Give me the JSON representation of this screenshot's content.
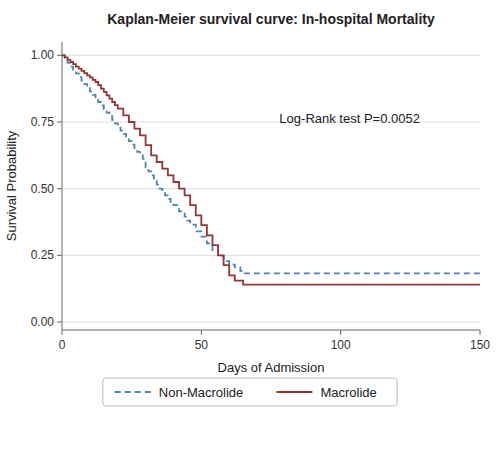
{
  "chart_data": {
    "type": "step",
    "title": "Kaplan-Meier survival curve: In-hospital Mortality",
    "xlabel": "Days of Admission",
    "ylabel": "Survival Probability",
    "annotation": "Log-Rank test P=0.0052",
    "xlim": [
      0,
      150
    ],
    "ylim": [
      -0.03,
      1.05
    ],
    "xticks": [
      0,
      50,
      100,
      150
    ],
    "yticks": [
      {
        "value": 0.0,
        "label": "0.00"
      },
      {
        "value": 0.25,
        "label": "0.25"
      },
      {
        "value": 0.5,
        "label": "0.50"
      },
      {
        "value": 0.75,
        "label": "0.75"
      },
      {
        "value": 1.0,
        "label": "1.00"
      }
    ],
    "grid": "y",
    "legend": "bottom",
    "series": [
      {
        "name": "Non-Macrolide",
        "color": "#4f81bd",
        "line_style": "dashed",
        "x": [
          0,
          1,
          2,
          3,
          4,
          5,
          6,
          7,
          8,
          9,
          10,
          11,
          12,
          13,
          14,
          15,
          16,
          17,
          18,
          19,
          20,
          21,
          22,
          23,
          24,
          25,
          26,
          27,
          28,
          29,
          30,
          31,
          32,
          33,
          34,
          35,
          36,
          37,
          38,
          39,
          40,
          42,
          44,
          45,
          46,
          48,
          50,
          52,
          54,
          56,
          58,
          60,
          62,
          64,
          65,
          150
        ],
        "values": [
          1.0,
          0.985,
          0.972,
          0.958,
          0.945,
          0.932,
          0.918,
          0.905,
          0.892,
          0.878,
          0.865,
          0.852,
          0.838,
          0.825,
          0.812,
          0.798,
          0.785,
          0.772,
          0.758,
          0.745,
          0.732,
          0.718,
          0.705,
          0.692,
          0.678,
          0.665,
          0.652,
          0.638,
          0.625,
          0.612,
          0.58,
          0.565,
          0.55,
          0.53,
          0.515,
          0.5,
          0.488,
          0.475,
          0.462,
          0.45,
          0.438,
          0.415,
          0.395,
          0.38,
          0.365,
          0.34,
          0.32,
          0.295,
          0.27,
          0.248,
          0.228,
          0.215,
          0.205,
          0.192,
          0.182,
          0.182
        ]
      },
      {
        "name": "Macrolide",
        "color": "#943634",
        "line_style": "solid",
        "x": [
          0,
          1,
          2,
          3,
          4,
          5,
          6,
          7,
          8,
          9,
          10,
          11,
          12,
          13,
          14,
          15,
          16,
          17,
          18,
          19,
          20,
          22,
          24,
          26,
          28,
          30,
          32,
          34,
          36,
          38,
          40,
          42,
          44,
          46,
          48,
          50,
          52,
          54,
          56,
          58,
          60,
          62,
          65,
          150
        ],
        "values": [
          1.0,
          0.992,
          0.983,
          0.975,
          0.967,
          0.958,
          0.95,
          0.942,
          0.933,
          0.925,
          0.917,
          0.908,
          0.9,
          0.888,
          0.875,
          0.863,
          0.85,
          0.838,
          0.825,
          0.813,
          0.8,
          0.775,
          0.75,
          0.725,
          0.7,
          0.663,
          0.625,
          0.6,
          0.575,
          0.55,
          0.525,
          0.5,
          0.475,
          0.438,
          0.4,
          0.363,
          0.325,
          0.288,
          0.25,
          0.213,
          0.175,
          0.155,
          0.14,
          0.14
        ]
      }
    ]
  }
}
